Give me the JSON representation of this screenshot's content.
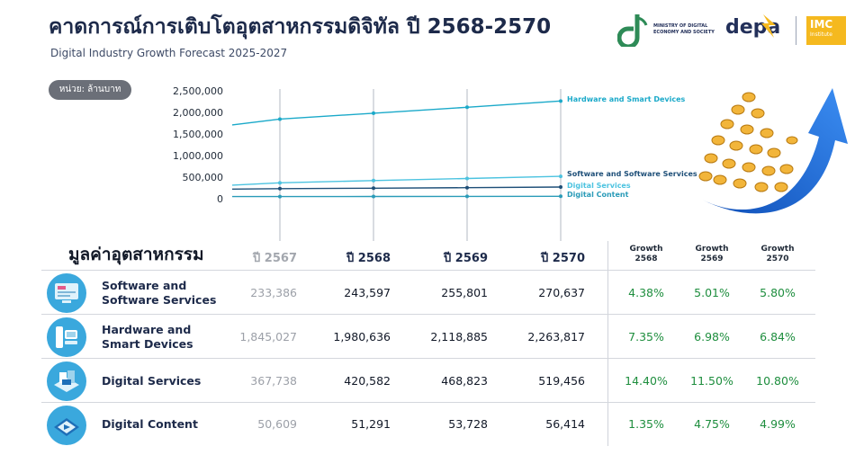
{
  "header": {
    "title": "คาดการณ์การเติบโตอุตสาหกรรมดิจิทัล ปี 2568-2570",
    "subtitle": "Digital Industry Growth Forecast 2025-2027"
  },
  "logos": {
    "ministry_line1": "MINISTRY OF DIGITAL",
    "ministry_line2": "ECONOMY AND SOCIETY",
    "depa": "depa",
    "imc": "IMC",
    "imc_sub": "Institute"
  },
  "unit_label": "หน่วย: ล้านบาท",
  "colors": {
    "accent": "#1aa9c9",
    "title": "#1d2a4a",
    "growth": "#1e8e3e",
    "icon_bg": "#3aa8dd"
  },
  "chart_data": {
    "type": "line",
    "x": [
      "ปี 2567",
      "ปี 2568",
      "ปี 2569",
      "ปี 2570"
    ],
    "y_ticks": [
      "2,500,000",
      "2,000,000",
      "1,500,000",
      "1,000,000",
      "500,000",
      "0"
    ],
    "ylim": [
      0,
      2500000
    ],
    "grid": "vertical",
    "series": [
      {
        "name": "Hardware and Smart Devices",
        "values": [
          1845027,
          1980636,
          2118885,
          2263817
        ],
        "color": "#1aa9c9"
      },
      {
        "name": "Software and Software Services",
        "values": [
          233386,
          243597,
          255801,
          270637
        ],
        "color": "#1e4f78"
      },
      {
        "name": "Digital Services",
        "values": [
          367738,
          420582,
          468823,
          519456
        ],
        "color": "#4cc3e0"
      },
      {
        "name": "Digital Content",
        "values": [
          50609,
          51291,
          53728,
          56414
        ],
        "color": "#2a9bb8"
      }
    ]
  },
  "table": {
    "title": "มูลค่าอุตสาหกรรม",
    "columns": [
      "ปี 2567",
      "ปี 2568",
      "ปี 2569",
      "ปี 2570"
    ],
    "growth_label": "Growth",
    "growth_years": [
      "2568",
      "2569",
      "2570"
    ],
    "rows": [
      {
        "label_line1": "Software and",
        "label_line2": "Software Services",
        "icon": "software-icon",
        "values": [
          "233,386",
          "243,597",
          "255,801",
          "270,637"
        ],
        "growth": [
          "4.38%",
          "5.01%",
          "5.80%"
        ]
      },
      {
        "label_line1": "Hardware and",
        "label_line2": "Smart Devices",
        "icon": "hardware-icon",
        "values": [
          "1,845,027",
          "1,980,636",
          "2,118,885",
          "2,263,817"
        ],
        "growth": [
          "7.35%",
          "6.98%",
          "6.84%"
        ]
      },
      {
        "label_line1": "Digital Services",
        "label_line2": "",
        "icon": "digital-services-icon",
        "values": [
          "367,738",
          "420,582",
          "468,823",
          "519,456"
        ],
        "growth": [
          "14.40%",
          "11.50%",
          "10.80%"
        ]
      },
      {
        "label_line1": "Digital Content",
        "label_line2": "",
        "icon": "digital-content-icon",
        "values": [
          "50,609",
          "51,291",
          "53,728",
          "56,414"
        ],
        "growth": [
          "1.35%",
          "4.75%",
          "4.99%"
        ]
      }
    ]
  }
}
